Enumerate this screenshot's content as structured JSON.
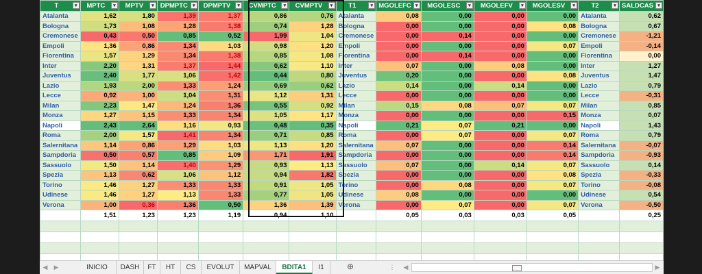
{
  "headers": [
    "T",
    "MPTC",
    "MPTV",
    "DPMPTC",
    "DPMPTV",
    "CVMPTC",
    "CVMPTV",
    "T1",
    "MGOLEFC",
    "MGOLESC",
    "MGOLEFV",
    "MGOLESV",
    "T2",
    "SALDCAS"
  ],
  "rows": [
    {
      "team": "Atalanta",
      "v": [
        "1,62",
        "1,80",
        "1,39",
        "1,37",
        "0,86",
        "0,76",
        "0,08",
        "0,00",
        "0,00",
        "0,00",
        "0,62"
      ]
    },
    {
      "team": "Bologna",
      "v": [
        "1,73",
        "1,08",
        "1,28",
        "1,38",
        "0,74",
        "1,28",
        "0,00",
        "0,00",
        "0,00",
        "0,08",
        "0,67"
      ]
    },
    {
      "team": "Cremonese",
      "v": [
        "0,43",
        "0,50",
        "0,85",
        "0,52",
        "1,99",
        "1,04",
        "0,00",
        "0,14",
        "0,00",
        "0,00",
        "-1,21"
      ]
    },
    {
      "team": "Empoli",
      "v": [
        "1,36",
        "0,86",
        "1,34",
        "1,03",
        "0,98",
        "1,20",
        "0,00",
        "0,00",
        "0,00",
        "0,07",
        "-0,14"
      ]
    },
    {
      "team": "Fiorentina",
      "v": [
        "1,57",
        "1,29",
        "1,34",
        "1,38",
        "0,85",
        "1,08",
        "0,00",
        "0,14",
        "0,00",
        "0,00",
        "0,00"
      ]
    },
    {
      "team": "Inter",
      "v": [
        "2,20",
        "1,31",
        "1,37",
        "1,44",
        "0,62",
        "1,10",
        "0,07",
        "0,00",
        "0,08",
        "0,00",
        "1,27"
      ]
    },
    {
      "team": "Juventus",
      "v": [
        "2,40",
        "1,77",
        "1,06",
        "1,42",
        "0,44",
        "0,80",
        "0,20",
        "0,00",
        "0,00",
        "0,08",
        "1,47"
      ]
    },
    {
      "team": "Lazio",
      "v": [
        "1,93",
        "2,00",
        "1,33",
        "1,24",
        "0,69",
        "0,62",
        "0,14",
        "0,00",
        "0,14",
        "0,00",
        "0,79"
      ]
    },
    {
      "team": "Lecce",
      "v": [
        "0,92",
        "1,00",
        "1,04",
        "1,31",
        "1,12",
        "1,31",
        "0,00",
        "0,00",
        "0,00",
        "0,00",
        "-0,31"
      ]
    },
    {
      "team": "Milan",
      "v": [
        "2,23",
        "1,47",
        "1,24",
        "1,36",
        "0,55",
        "0,92",
        "0,15",
        "0,08",
        "0,07",
        "0,07",
        "0,85"
      ]
    },
    {
      "team": "Monza",
      "v": [
        "1,27",
        "1,15",
        "1,33",
        "1,34",
        "1,05",
        "1,17",
        "0,00",
        "0,00",
        "0,00",
        "0,15",
        "0,07"
      ]
    },
    {
      "team": "Napoli",
      "v": [
        "2,43",
        "2,64",
        "1,16",
        "0,93",
        "0,48",
        "0,35",
        "0,21",
        "0,07",
        "0,21",
        "0,00",
        "1,43"
      ]
    },
    {
      "team": "Roma",
      "v": [
        "2,00",
        "1,57",
        "1,41",
        "1,34",
        "0,71",
        "0,85",
        "0,00",
        "0,07",
        "0,00",
        "0,07",
        "0,79"
      ]
    },
    {
      "team": "Salernitana",
      "v": [
        "1,14",
        "0,86",
        "1,29",
        "1,03",
        "1,13",
        "1,20",
        "0,07",
        "0,00",
        "0,00",
        "0,14",
        "-0,07"
      ]
    },
    {
      "team": "Sampdoria",
      "v": [
        "0,50",
        "0,57",
        "0,85",
        "1,09",
        "1,71",
        "1,91",
        "0,00",
        "0,00",
        "0,00",
        "0,14",
        "-0,93"
      ]
    },
    {
      "team": "Sassuolo",
      "v": [
        "1,50",
        "1,14",
        "1,40",
        "1,29",
        "0,93",
        "1,13",
        "0,07",
        "0,00",
        "0,14",
        "0,07",
        "0,14"
      ]
    },
    {
      "team": "Spezia",
      "v": [
        "1,13",
        "0,62",
        "1,06",
        "1,12",
        "0,94",
        "1,82",
        "0,00",
        "0,00",
        "0,00",
        "0,08",
        "-0,33"
      ]
    },
    {
      "team": "Torino",
      "v": [
        "1,46",
        "1,27",
        "1,33",
        "1,33",
        "0,91",
        "1,05",
        "0,00",
        "0,08",
        "0,00",
        "0,07",
        "-0,08"
      ]
    },
    {
      "team": "Udinese",
      "v": [
        "1,46",
        "1,27",
        "1,13",
        "1,33",
        "0,77",
        "1,05",
        "0,08",
        "0,00",
        "0,00",
        "0,00",
        "0,54"
      ]
    },
    {
      "team": "Verona",
      "v": [
        "1,00",
        "0,36",
        "1,36",
        "0,50",
        "1,36",
        "1,39",
        "0,00",
        "0,07",
        "0,00",
        "0,07",
        "-0,50"
      ]
    }
  ],
  "totals": [
    "1,51",
    "1,23",
    "1,23",
    "1,19",
    "0,94",
    "1,10",
    "0,05",
    "0,03",
    "0,03",
    "0,05",
    "0,25"
  ],
  "tabs": [
    "INICIO",
    "DASH",
    "FT",
    "HT",
    "CS",
    "EVOLUT",
    "MAPVAL",
    "BDITA1",
    "I1"
  ],
  "active_tab": "BDITA1",
  "add_sheet_icon": "plus-circle-icon",
  "colors": {
    "header": "#1e8c4a",
    "team_text": "#2f5da8",
    "team_bg": "#e2efda",
    "active_tab": "#1e7145",
    "red_text": "#c00000"
  }
}
